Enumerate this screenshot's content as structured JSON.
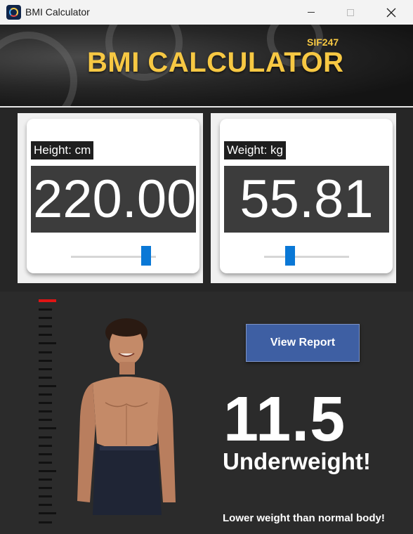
{
  "window": {
    "title": "BMI Calculator",
    "icon": "bmi-app-icon"
  },
  "banner": {
    "title": "BMI CALCULATOR",
    "subtitle": "SIF247",
    "accent_color": "#f7c843"
  },
  "height": {
    "label": "Height: cm",
    "value": "220.00",
    "slider_fraction": 0.93
  },
  "weight": {
    "label": "Weight: kg",
    "value": "55.81",
    "slider_fraction": 0.28
  },
  "result": {
    "button_label": "View Report",
    "bmi": "11.5",
    "category": "Underweight!",
    "message": "Lower weight than normal body!",
    "indicator_color": "#e01414",
    "scale_ticks": 26
  },
  "colors": {
    "slider_thumb": "#0a78d6",
    "button": "#3e5fa3"
  }
}
